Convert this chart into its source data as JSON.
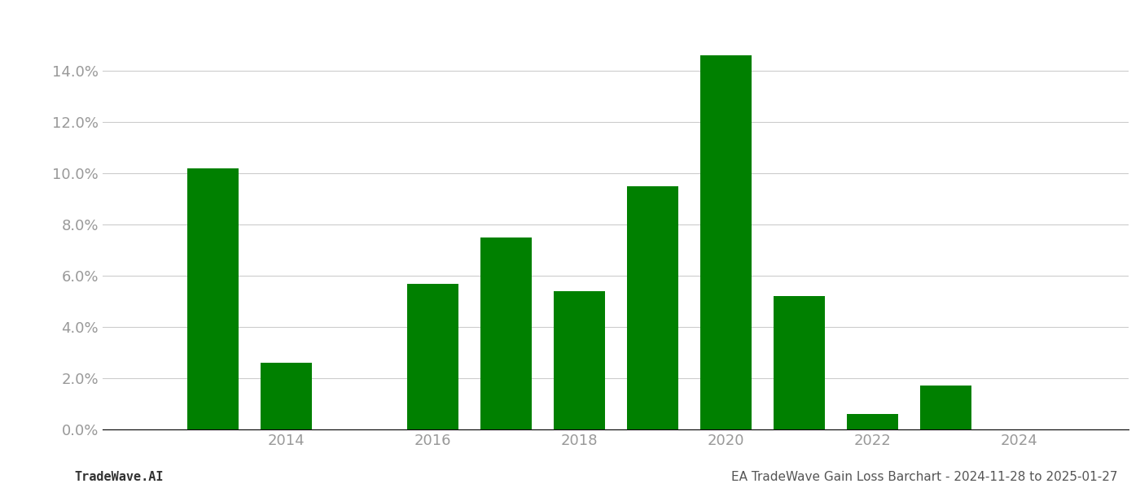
{
  "years": [
    2013,
    2014,
    2016,
    2017,
    2018,
    2019,
    2020,
    2021,
    2022,
    2023
  ],
  "values": [
    0.102,
    0.026,
    0.057,
    0.075,
    0.054,
    0.095,
    0.146,
    0.052,
    0.006,
    0.017
  ],
  "bar_color": "#008000",
  "background_color": "#ffffff",
  "grid_color": "#cccccc",
  "yticks": [
    0.0,
    0.02,
    0.04,
    0.06,
    0.08,
    0.1,
    0.12,
    0.14
  ],
  "xticks": [
    2014,
    2016,
    2018,
    2020,
    2022,
    2024
  ],
  "xlim": [
    2011.5,
    2025.5
  ],
  "ylim": [
    0,
    0.162
  ],
  "footer_left": "TradeWave.AI",
  "footer_right": "EA TradeWave Gain Loss Barchart - 2024-11-28 to 2025-01-27",
  "footer_fontsize": 11,
  "bar_width": 0.7,
  "tick_label_color": "#999999",
  "tick_fontsize": 13,
  "grid_linewidth": 0.8
}
